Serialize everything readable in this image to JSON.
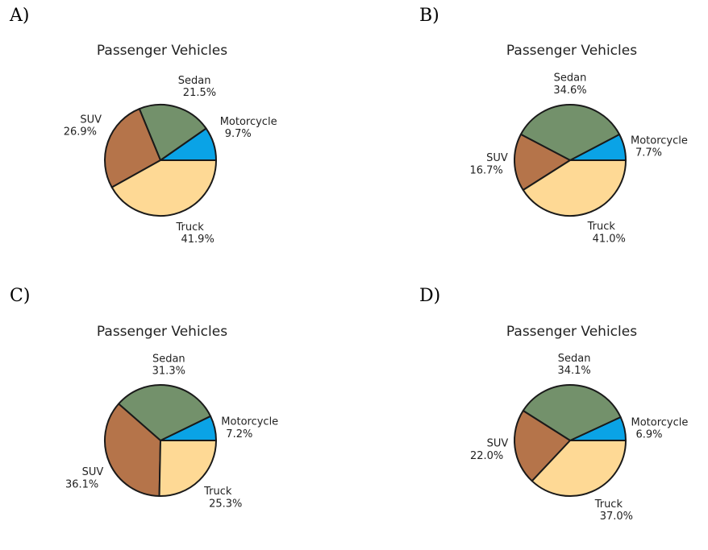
{
  "colors": {
    "Motorcycle": "#0aa3e6",
    "Sedan": "#73916b",
    "SUV": "#b5744a",
    "Truck": "#fed995"
  },
  "chart_data": [
    {
      "panel": "A)",
      "type": "pie",
      "title": "Passenger Vehicles",
      "categories": [
        "Motorcycle",
        "Sedan",
        "SUV",
        "Truck"
      ],
      "values": [
        9.7,
        21.5,
        26.9,
        41.9
      ],
      "value_labels": [
        "9.7%",
        "21.5%",
        "26.9%",
        "41.9%"
      ],
      "start_angle_deg": 0,
      "direction": "counterclockwise"
    },
    {
      "panel": "B)",
      "type": "pie",
      "title": "Passenger Vehicles",
      "categories": [
        "Motorcycle",
        "Sedan",
        "SUV",
        "Truck"
      ],
      "values": [
        7.7,
        34.6,
        16.7,
        41.0
      ],
      "value_labels": [
        "7.7%",
        "34.6%",
        "16.7%",
        "41.0%"
      ],
      "start_angle_deg": 0,
      "direction": "counterclockwise"
    },
    {
      "panel": "C)",
      "type": "pie",
      "title": "Passenger Vehicles",
      "categories": [
        "Motorcycle",
        "Sedan",
        "SUV",
        "Truck"
      ],
      "values": [
        7.2,
        31.3,
        36.1,
        25.3
      ],
      "value_labels": [
        "7.2%",
        "31.3%",
        "36.1%",
        "25.3%"
      ],
      "start_angle_deg": 0,
      "direction": "counterclockwise"
    },
    {
      "panel": "D)",
      "type": "pie",
      "title": "Passenger Vehicles",
      "categories": [
        "Motorcycle",
        "Sedan",
        "SUV",
        "Truck"
      ],
      "values": [
        6.9,
        34.1,
        22.0,
        37.0
      ],
      "value_labels": [
        "6.9%",
        "34.1%",
        "22.0%",
        "37.0%"
      ],
      "start_angle_deg": 0,
      "direction": "counterclockwise"
    }
  ]
}
